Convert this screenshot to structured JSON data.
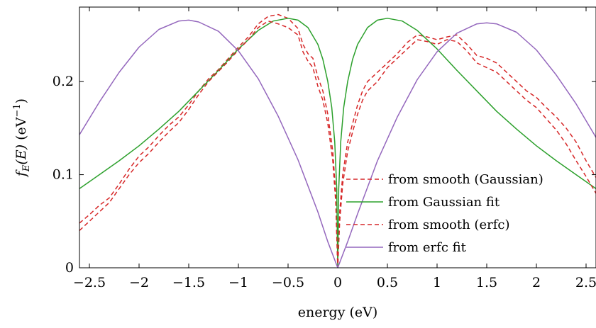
{
  "chart_data": {
    "type": "line",
    "xlabel": "energy (eV)",
    "ylabel": {
      "f": "f",
      "sub": "E",
      "arg": "(E)",
      "unit_open": "(eV",
      "unit_sup": "−1",
      "unit_close": ")"
    },
    "xlim": [
      -2.6,
      2.6
    ],
    "ylim": [
      0,
      0.28
    ],
    "xticks": [
      -2.5,
      -2,
      -1.5,
      -1,
      -0.5,
      0,
      0.5,
      1,
      1.5,
      2,
      2.5
    ],
    "xtick_labels": [
      "−2.5",
      "−2",
      "−1.5",
      "−1",
      "−0.5",
      "0",
      "0.5",
      "1",
      "1.5",
      "2",
      "2.5"
    ],
    "yticks": [
      0,
      0.1,
      0.2
    ],
    "ytick_labels": [
      "0",
      "0.1",
      "0.2"
    ],
    "grid": false,
    "legend_position": "bottom-right",
    "colors": {
      "red": "#d62728",
      "green": "#2ca02c",
      "purple": "#9467bd"
    },
    "series": [
      {
        "name": "from smooth (Gaussian)",
        "style": "dashed",
        "color": "#d62728",
        "points": [
          [
            -2.6,
            0.048
          ],
          [
            -2.5,
            0.057
          ],
          [
            -2.4,
            0.067
          ],
          [
            -2.3,
            0.075
          ],
          [
            -2.2,
            0.09
          ],
          [
            -2.1,
            0.106
          ],
          [
            -2.0,
            0.12
          ],
          [
            -1.9,
            0.13
          ],
          [
            -1.8,
            0.142
          ],
          [
            -1.7,
            0.153
          ],
          [
            -1.6,
            0.162
          ],
          [
            -1.5,
            0.175
          ],
          [
            -1.4,
            0.19
          ],
          [
            -1.3,
            0.203
          ],
          [
            -1.2,
            0.213
          ],
          [
            -1.1,
            0.225
          ],
          [
            -1.0,
            0.237
          ],
          [
            -0.9,
            0.248
          ],
          [
            -0.8,
            0.262
          ],
          [
            -0.7,
            0.27
          ],
          [
            -0.6,
            0.272
          ],
          [
            -0.5,
            0.268
          ],
          [
            -0.4,
            0.257
          ],
          [
            -0.35,
            0.24
          ],
          [
            -0.3,
            0.23
          ],
          [
            -0.25,
            0.225
          ],
          [
            -0.2,
            0.205
          ],
          [
            -0.15,
            0.19
          ],
          [
            -0.1,
            0.165
          ],
          [
            -0.05,
            0.125
          ],
          [
            -0.02,
            0.08
          ],
          [
            0.0,
            0.0
          ],
          [
            0.02,
            0.06
          ],
          [
            0.05,
            0.1
          ],
          [
            0.1,
            0.135
          ],
          [
            0.15,
            0.155
          ],
          [
            0.2,
            0.175
          ],
          [
            0.25,
            0.19
          ],
          [
            0.3,
            0.2
          ],
          [
            0.4,
            0.21
          ],
          [
            0.5,
            0.22
          ],
          [
            0.6,
            0.23
          ],
          [
            0.7,
            0.242
          ],
          [
            0.8,
            0.25
          ],
          [
            0.9,
            0.248
          ],
          [
            1.0,
            0.245
          ],
          [
            1.1,
            0.248
          ],
          [
            1.2,
            0.25
          ],
          [
            1.3,
            0.24
          ],
          [
            1.4,
            0.228
          ],
          [
            1.5,
            0.225
          ],
          [
            1.6,
            0.22
          ],
          [
            1.7,
            0.21
          ],
          [
            1.8,
            0.2
          ],
          [
            1.9,
            0.19
          ],
          [
            2.0,
            0.183
          ],
          [
            2.1,
            0.172
          ],
          [
            2.2,
            0.162
          ],
          [
            2.3,
            0.15
          ],
          [
            2.4,
            0.135
          ],
          [
            2.5,
            0.115
          ],
          [
            2.6,
            0.097
          ]
        ]
      },
      {
        "name": "from Gaussian fit",
        "style": "solid",
        "color": "#2ca02c",
        "points": [
          [
            -2.6,
            0.085
          ],
          [
            -2.4,
            0.1
          ],
          [
            -2.2,
            0.115
          ],
          [
            -2.0,
            0.131
          ],
          [
            -1.8,
            0.149
          ],
          [
            -1.6,
            0.168
          ],
          [
            -1.4,
            0.19
          ],
          [
            -1.2,
            0.212
          ],
          [
            -1.0,
            0.235
          ],
          [
            -0.8,
            0.255
          ],
          [
            -0.65,
            0.265
          ],
          [
            -0.5,
            0.268
          ],
          [
            -0.4,
            0.266
          ],
          [
            -0.3,
            0.258
          ],
          [
            -0.2,
            0.24
          ],
          [
            -0.15,
            0.224
          ],
          [
            -0.1,
            0.2
          ],
          [
            -0.06,
            0.172
          ],
          [
            -0.03,
            0.135
          ],
          [
            -0.01,
            0.085
          ],
          [
            0.0,
            0.0
          ],
          [
            0.01,
            0.085
          ],
          [
            0.03,
            0.135
          ],
          [
            0.06,
            0.172
          ],
          [
            0.1,
            0.2
          ],
          [
            0.15,
            0.224
          ],
          [
            0.2,
            0.24
          ],
          [
            0.3,
            0.258
          ],
          [
            0.4,
            0.266
          ],
          [
            0.5,
            0.268
          ],
          [
            0.65,
            0.265
          ],
          [
            0.8,
            0.255
          ],
          [
            1.0,
            0.235
          ],
          [
            1.2,
            0.212
          ],
          [
            1.4,
            0.19
          ],
          [
            1.6,
            0.168
          ],
          [
            1.8,
            0.149
          ],
          [
            2.0,
            0.131
          ],
          [
            2.2,
            0.115
          ],
          [
            2.4,
            0.1
          ],
          [
            2.6,
            0.085
          ]
        ]
      },
      {
        "name": "from smooth (erfc)",
        "style": "dashed",
        "color": "#d62728",
        "points": [
          [
            -2.6,
            0.04
          ],
          [
            -2.5,
            0.05
          ],
          [
            -2.4,
            0.06
          ],
          [
            -2.3,
            0.07
          ],
          [
            -2.2,
            0.085
          ],
          [
            -2.1,
            0.1
          ],
          [
            -2.0,
            0.113
          ],
          [
            -1.9,
            0.123
          ],
          [
            -1.8,
            0.135
          ],
          [
            -1.7,
            0.146
          ],
          [
            -1.6,
            0.156
          ],
          [
            -1.5,
            0.17
          ],
          [
            -1.4,
            0.186
          ],
          [
            -1.3,
            0.2
          ],
          [
            -1.2,
            0.211
          ],
          [
            -1.1,
            0.222
          ],
          [
            -1.0,
            0.234
          ],
          [
            -0.9,
            0.245
          ],
          [
            -0.8,
            0.258
          ],
          [
            -0.7,
            0.265
          ],
          [
            -0.6,
            0.262
          ],
          [
            -0.5,
            0.258
          ],
          [
            -0.4,
            0.25
          ],
          [
            -0.35,
            0.232
          ],
          [
            -0.3,
            0.222
          ],
          [
            -0.25,
            0.215
          ],
          [
            -0.2,
            0.195
          ],
          [
            -0.15,
            0.18
          ],
          [
            -0.1,
            0.155
          ],
          [
            -0.05,
            0.115
          ],
          [
            -0.02,
            0.07
          ],
          [
            0.0,
            0.0
          ],
          [
            0.02,
            0.05
          ],
          [
            0.05,
            0.09
          ],
          [
            0.1,
            0.125
          ],
          [
            0.15,
            0.146
          ],
          [
            0.2,
            0.165
          ],
          [
            0.25,
            0.18
          ],
          [
            0.3,
            0.19
          ],
          [
            0.4,
            0.2
          ],
          [
            0.5,
            0.215
          ],
          [
            0.6,
            0.225
          ],
          [
            0.7,
            0.235
          ],
          [
            0.8,
            0.245
          ],
          [
            0.9,
            0.243
          ],
          [
            1.0,
            0.24
          ],
          [
            1.1,
            0.245
          ],
          [
            1.2,
            0.243
          ],
          [
            1.3,
            0.233
          ],
          [
            1.4,
            0.22
          ],
          [
            1.5,
            0.215
          ],
          [
            1.6,
            0.21
          ],
          [
            1.7,
            0.2
          ],
          [
            1.8,
            0.19
          ],
          [
            1.9,
            0.18
          ],
          [
            2.0,
            0.172
          ],
          [
            2.1,
            0.16
          ],
          [
            2.2,
            0.148
          ],
          [
            2.3,
            0.133
          ],
          [
            2.4,
            0.115
          ],
          [
            2.5,
            0.098
          ],
          [
            2.6,
            0.08
          ]
        ]
      },
      {
        "name": "from erfc fit",
        "style": "solid",
        "color": "#9467bd",
        "points": [
          [
            -2.6,
            0.143
          ],
          [
            -2.4,
            0.178
          ],
          [
            -2.2,
            0.21
          ],
          [
            -2.0,
            0.237
          ],
          [
            -1.8,
            0.256
          ],
          [
            -1.6,
            0.265
          ],
          [
            -1.5,
            0.266
          ],
          [
            -1.4,
            0.264
          ],
          [
            -1.2,
            0.254
          ],
          [
            -1.0,
            0.233
          ],
          [
            -0.8,
            0.203
          ],
          [
            -0.6,
            0.163
          ],
          [
            -0.4,
            0.116
          ],
          [
            -0.2,
            0.06
          ],
          [
            -0.1,
            0.028
          ],
          [
            0.0,
            0.0
          ],
          [
            0.1,
            0.028
          ],
          [
            0.2,
            0.058
          ],
          [
            0.4,
            0.115
          ],
          [
            0.6,
            0.162
          ],
          [
            0.8,
            0.202
          ],
          [
            1.0,
            0.232
          ],
          [
            1.2,
            0.252
          ],
          [
            1.4,
            0.262
          ],
          [
            1.5,
            0.263
          ],
          [
            1.6,
            0.262
          ],
          [
            1.8,
            0.253
          ],
          [
            2.0,
            0.234
          ],
          [
            2.2,
            0.207
          ],
          [
            2.4,
            0.176
          ],
          [
            2.6,
            0.14
          ]
        ]
      }
    ]
  }
}
